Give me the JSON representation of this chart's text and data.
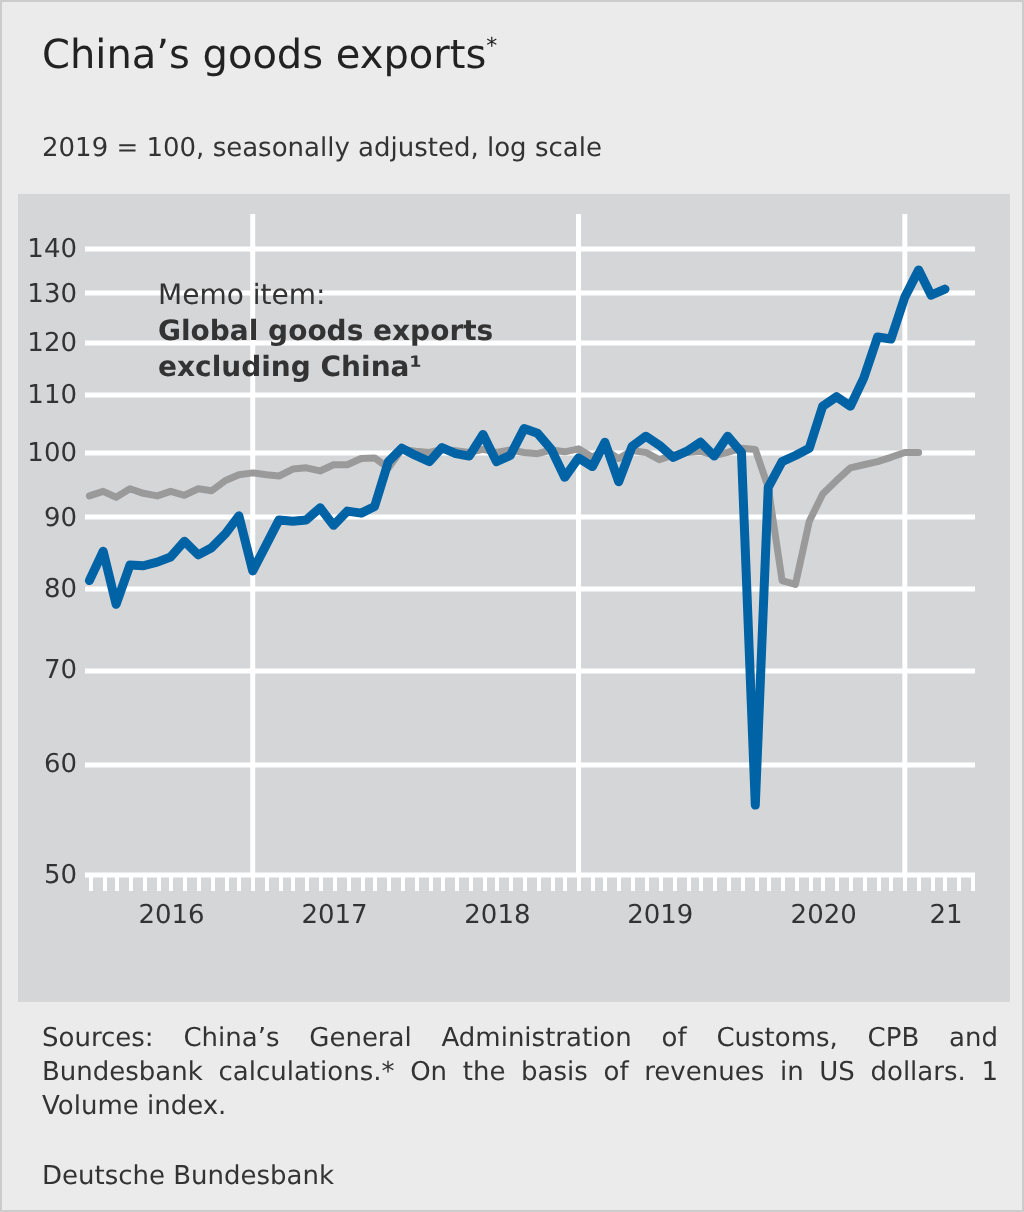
{
  "chart_data": {
    "type": "line",
    "title": "China’s goods exports$^{*}$",
    "subtitle": "2019 = 100, seasonally adjusted, log scale",
    "x": [
      "2016-01",
      "2016-02",
      "2016-03",
      "2016-04",
      "2016-05",
      "2016-06",
      "2016-07",
      "2016-08",
      "2016-09",
      "2016-10",
      "2016-11",
      "2016-12",
      "2017-01",
      "2017-02",
      "2017-03",
      "2017-04",
      "2017-05",
      "2017-06",
      "2017-07",
      "2017-08",
      "2017-09",
      "2017-10",
      "2017-11",
      "2017-12",
      "2018-01",
      "2018-02",
      "2018-03",
      "2018-04",
      "2018-05",
      "2018-06",
      "2018-07",
      "2018-08",
      "2018-09",
      "2018-10",
      "2018-11",
      "2018-12",
      "2019-01",
      "2019-02",
      "2019-03",
      "2019-04",
      "2019-05",
      "2019-06",
      "2019-07",
      "2019-08",
      "2019-09",
      "2019-10",
      "2019-11",
      "2019-12",
      "2020-01",
      "2020-02",
      "2020-03",
      "2020-04",
      "2020-05",
      "2020-06",
      "2020-07",
      "2020-08",
      "2020-09",
      "2020-10",
      "2020-11",
      "2020-12",
      "2021-01",
      "2021-02",
      "2021-03",
      "2021-04"
    ],
    "series": [
      {
        "color": "#0063a6",
        "values": [
          81.0,
          85.0,
          77.9,
          83.1,
          83.0,
          83.5,
          84.2,
          86.4,
          84.5,
          85.5,
          87.5,
          90.1,
          82.3,
          86,
          89.5,
          89.3,
          89.5,
          91.3,
          88.7,
          90.8,
          90.5,
          91.5,
          98.5,
          100.7,
          99.5,
          98.5,
          100.8,
          99.8,
          99.4,
          103.0,
          98.5,
          99.5,
          104.0,
          103.2,
          100.5,
          96.0,
          99.1,
          97.7,
          101.7,
          95.3,
          101.0,
          102.7,
          101.2,
          99.2,
          100.2,
          101.7,
          99.4,
          102.7,
          100.0,
          56.0,
          94.4,
          98.5,
          99.5,
          100.7,
          107.9,
          109.6,
          107.9,
          113,
          120.9,
          120.5,
          129.1,
          135.0,
          129.5,
          130.8
        ]
      },
      {
        "name": "Global goods exports excluding China¹",
        "color": "#9a9a9a",
        "values": [
          93.1,
          93.8,
          92.9,
          94.2,
          93.5,
          93.1,
          93.8,
          93.2,
          94.2,
          93.9,
          95.5,
          96.4,
          96.7,
          96.4,
          96.2,
          97.3,
          97.5,
          97.0,
          98.0,
          98.0,
          99.0,
          99.1,
          97.5,
          100.5,
          100.2,
          100.0,
          100.5,
          100.3,
          100.0,
          100.5,
          100.0,
          100.4,
          100.0,
          99.8,
          100.4,
          100.1,
          100.6,
          99.2,
          100.5,
          99.0,
          100.3,
          100.0,
          98.8,
          99.6,
          100.0,
          100.2,
          99.5,
          100.0,
          100.7,
          100.5,
          94.4,
          81.0,
          80.5,
          89.3,
          93.4,
          95.5,
          97.5,
          98.0,
          98.5,
          99.2,
          100.0,
          100.0,
          null,
          null
        ]
      }
    ],
    "log": "y",
    "ylim": [
      50,
      148
    ],
    "yticks": [
      50,
      60,
      70,
      80,
      90,
      100,
      110,
      120,
      130,
      140
    ],
    "xlim": [
      "2015-12-20",
      "2021-06-05"
    ],
    "xticks": [
      {
        "value": "2016-01",
        "label": null
      },
      {
        "value": "2016-02",
        "label": null
      },
      {
        "value": "2016-03",
        "label": null
      },
      {
        "value": "2016-04",
        "label": null
      },
      {
        "value": "2016-05",
        "label": null
      },
      {
        "value": "2016-06",
        "label": null
      },
      {
        "value": "2016-07",
        "label": "2016"
      },
      {
        "value": "2016-08",
        "label": null
      },
      {
        "value": "2016-09",
        "label": null
      },
      {
        "value": "2016-10",
        "label": null
      },
      {
        "value": "2016-11",
        "label": null
      },
      {
        "value": "2016-12",
        "label": null
      },
      {
        "value": "2017-01",
        "label": null
      },
      {
        "value": "2017-02",
        "label": null
      },
      {
        "value": "2017-03",
        "label": null
      },
      {
        "value": "2017-04",
        "label": null
      },
      {
        "value": "2017-05",
        "label": null
      },
      {
        "value": "2017-06",
        "label": null
      },
      {
        "value": "2017-07",
        "label": "2017"
      },
      {
        "value": "2017-08",
        "label": null
      },
      {
        "value": "2017-09",
        "label": null
      },
      {
        "value": "2017-10",
        "label": null
      },
      {
        "value": "2017-11",
        "label": null
      },
      {
        "value": "2017-12",
        "label": null
      },
      {
        "value": "2018-01",
        "label": null
      },
      {
        "value": "2018-02",
        "label": null
      },
      {
        "value": "2018-03",
        "label": null
      },
      {
        "value": "2018-04",
        "label": null
      },
      {
        "value": "2018-05",
        "label": null
      },
      {
        "value": "2018-06",
        "label": null
      },
      {
        "value": "2018-07",
        "label": "2018"
      },
      {
        "value": "2018-08",
        "label": null
      },
      {
        "value": "2018-09",
        "label": null
      },
      {
        "value": "2018-10",
        "label": null
      },
      {
        "value": "2018-11",
        "label": null
      },
      {
        "value": "2018-12",
        "label": null
      },
      {
        "value": "2019-01",
        "label": null
      },
      {
        "value": "2019-02",
        "label": null
      },
      {
        "value": "2019-03",
        "label": null
      },
      {
        "value": "2019-04",
        "label": null
      },
      {
        "value": "2019-05",
        "label": null
      },
      {
        "value": "2019-06",
        "label": null
      },
      {
        "value": "2019-07",
        "label": "2019"
      },
      {
        "value": "2019-08",
        "label": null
      },
      {
        "value": "2019-09",
        "label": null
      },
      {
        "value": "2019-10",
        "label": null
      },
      {
        "value": "2019-11",
        "label": null
      },
      {
        "value": "2019-12",
        "label": null
      },
      {
        "value": "2020-01",
        "label": null
      },
      {
        "value": "2020-02",
        "label": null
      },
      {
        "value": "2020-03",
        "label": null
      },
      {
        "value": "2020-04",
        "label": null
      },
      {
        "value": "2020-05",
        "label": null
      },
      {
        "value": "2020-06",
        "label": null
      },
      {
        "value": "2020-07",
        "label": "2020"
      },
      {
        "value": "2020-08",
        "label": null
      },
      {
        "value": "2020-09",
        "label": null
      },
      {
        "value": "2020-10",
        "label": null
      },
      {
        "value": "2020-11",
        "label": null
      },
      {
        "value": "2020-12",
        "label": null
      },
      {
        "value": "2021-01",
        "label": null
      },
      {
        "value": "2021-02",
        "label": null
      },
      {
        "value": "2021-03",
        "label": null
      },
      {
        "value": "2021-04",
        "label": "21"
      },
      {
        "value": "2021-05",
        "label": null
      },
      {
        "value": "2021-06",
        "label": null
      }
    ],
    "grid": "y",
    "ref_lines": [
      {
        "axis": "x",
        "value": "2017-01",
        "color": "#ffffff"
      },
      {
        "axis": "x",
        "value": "2019-01",
        "color": "#ffffff"
      },
      {
        "axis": "x",
        "value": "2021-01",
        "color": "#ffffff"
      }
    ],
    "annotations": [
      "Memo item:",
      "Sources: China’s General Administration of Customs, CPB and Bundesbank calculations.* On the basis of revenues in US dollars. 1 Volume index.",
      "Deutsche Bundesbank"
    ]
  }
}
